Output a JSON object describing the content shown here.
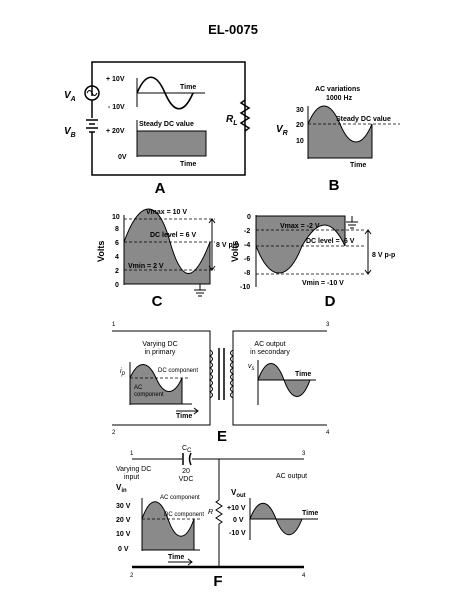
{
  "title": "EL-0075",
  "panelA": {
    "label": "A",
    "va": "V",
    "va_sub": "A",
    "vb": "V",
    "vb_sub": "B",
    "plus10": "+ 10V",
    "minus10": "- 10V",
    "plus20": "+ 20V",
    "zero": "0V",
    "time1": "Time",
    "steady": "Steady DC value",
    "time2": "Time",
    "rl": "R",
    "rl_sub": "L"
  },
  "panelB": {
    "label": "B",
    "vr": "V",
    "vr_sub": "R",
    "ac_var": "AC variations",
    "freq": "1000 Hz",
    "steady": "Steady DC value",
    "y30": "30",
    "y20": "20",
    "y10": "10",
    "time": "Time"
  },
  "panelC": {
    "label": "C",
    "volts": "Volts",
    "vmax": "Vmax = 10 V",
    "dc": "DC level = 6 V",
    "vmin": "Vmin = 2 V",
    "pp": "8 V p-p",
    "ticks": [
      "10",
      "8",
      "6",
      "4",
      "2",
      "0"
    ]
  },
  "panelD": {
    "label": "D",
    "volts": "Volts",
    "vmax": "Vmax = -2 V",
    "dc": "DC level = -6 V",
    "vmin": "Vmin = -10 V",
    "pp": "8 V p-p",
    "ticks": [
      "0",
      "-2",
      "-4",
      "-6",
      "-8",
      "-10"
    ]
  },
  "panelE": {
    "label": "E",
    "n1": "1",
    "n2": "2",
    "n3": "3",
    "n4": "4",
    "primary1": "Varying DC",
    "primary2": "in primary",
    "secondary1": "AC output",
    "secondary2": "in secondary",
    "ip": "i",
    "ip_sub": "p",
    "vs": "v",
    "vs_sub": "s",
    "dc_comp": "DC component",
    "ac_comp1": "AC",
    "ac_comp2": "component",
    "time1": "Time",
    "time2": "Time"
  },
  "panelF": {
    "label": "F",
    "n1": "1",
    "n2": "2",
    "n3": "3",
    "n4": "4",
    "cc": "C",
    "cc_sub": "C",
    "cap_val": "20",
    "cap_unit": "VDC",
    "input1": "Varying DC",
    "input2": "input",
    "ac_output": "AC output",
    "vin": "V",
    "vin_sub": "in",
    "vout": "V",
    "vout_sub": "out",
    "ac_comp": "AC component",
    "dc_comp": "DC component",
    "r": "R",
    "in_ticks": [
      "30 V",
      "20 V",
      "10 V",
      "0 V"
    ],
    "out_ticks": [
      "+10 V",
      "0 V",
      "-10 V"
    ],
    "time1": "Time",
    "time2": "Time"
  }
}
